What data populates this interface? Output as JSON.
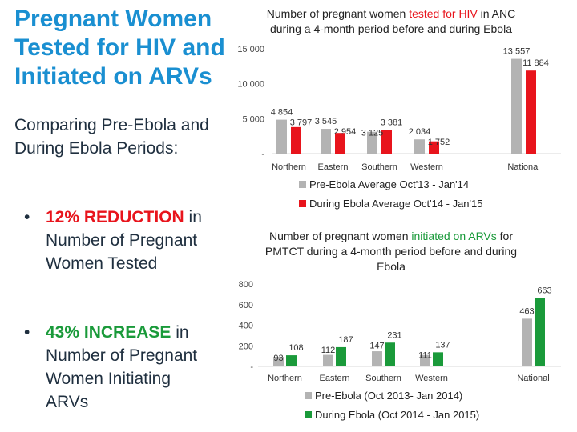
{
  "slide": {
    "title": "Pregnant Women Tested for HIV and Initiated on ARVs",
    "subtitle": "Comparing Pre-Ebola and During Ebola Periods:",
    "bullet_symbol": "•",
    "bullets": [
      {
        "highlight": "12% REDUCTION",
        "rest": " in Number of Pregnant Women Tested",
        "color": "#e8141c"
      },
      {
        "highlight": "43% INCREASE",
        "rest": " in Number of Pregnant Women Initiating ARVs",
        "color": "#1a9a3a"
      }
    ]
  },
  "colors": {
    "title": "#1a8fd1",
    "gray": "#b3b3b3",
    "red": "#e8141c",
    "green": "#1a9a3a"
  },
  "chart_data": [
    {
      "type": "bar",
      "title_parts": [
        "Number of ",
        "pregnant women ",
        "tested for HIV",
        " in ANC during a 4-month period before and during Ebola"
      ],
      "categories": [
        "Northern",
        "Eastern",
        "Southern",
        "Western",
        "National"
      ],
      "series": [
        {
          "name": "Pre-Ebola Average Oct'13 - Jan'14",
          "values": [
            4854,
            3545,
            3125,
            2034,
            13557
          ],
          "labels": [
            "4 854",
            "3 545",
            "3 125",
            "2 034",
            "13 557"
          ]
        },
        {
          "name": "During Ebola Average Oct'14 - Jan'15",
          "values": [
            3797,
            2954,
            3381,
            1752,
            11884
          ],
          "labels": [
            "3 797",
            "2 954",
            "3 381",
            "1 752",
            "11 884"
          ]
        }
      ],
      "yticks": [
        0,
        5000,
        10000,
        15000
      ],
      "ytick_labels": [
        "-",
        "5 000",
        "10 000",
        "15 000"
      ],
      "ylim": [
        0,
        15000
      ]
    },
    {
      "type": "bar",
      "title_parts": [
        "Number of pregnant ",
        "women ",
        "initiated on ARVs",
        " for PMTCT during a 4-month period before and during Ebola"
      ],
      "categories": [
        "Northern",
        "Eastern",
        "Southern",
        "Western",
        "National"
      ],
      "series": [
        {
          "name": "Pre-Ebola (Oct 2013- Jan 2014)",
          "values": [
            93,
            112,
            147,
            111,
            463
          ],
          "labels": [
            "93",
            "112",
            "147",
            "111",
            "463"
          ]
        },
        {
          "name": "During Ebola (Oct 2014 - Jan 2015)",
          "values": [
            108,
            187,
            231,
            137,
            663
          ],
          "labels": [
            "108",
            "187",
            "231",
            "137",
            "663"
          ]
        }
      ],
      "yticks": [
        0,
        200,
        400,
        600,
        800
      ],
      "ytick_labels": [
        "-",
        "200",
        "400",
        "600",
        "800"
      ],
      "ylim": [
        0,
        800
      ]
    }
  ]
}
